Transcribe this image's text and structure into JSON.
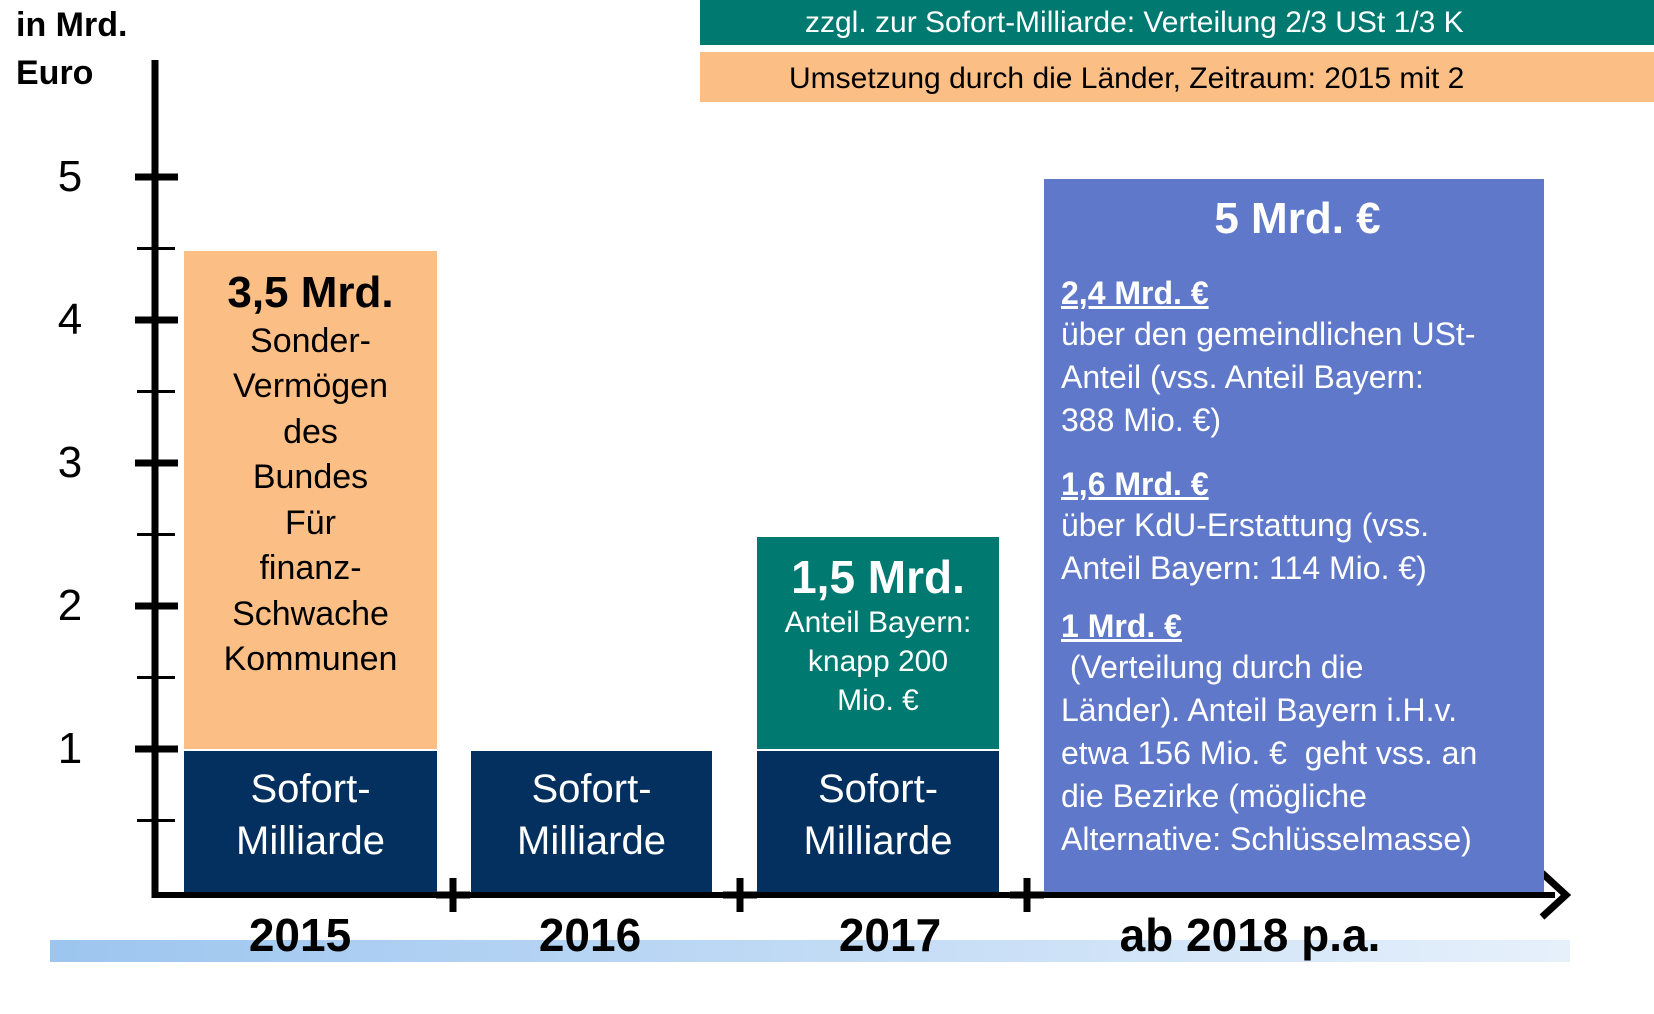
{
  "chart_data": {
    "type": "stacked_bar",
    "ylabel": [
      "in Mrd.",
      "Euro"
    ],
    "banners": [
      {
        "text": "zzgl. zur Sofort-Milliarde: Verteilung 2/3 USt 1/3 K",
        "color": "#007a70",
        "text_color": "#ffffff"
      },
      {
        "text": "Umsetzung durch die Länder, Zeitraum: 2015 mit 2",
        "color": "#fbbf85",
        "text_color": "#000000"
      }
    ],
    "categories": [
      "2015",
      "2016",
      "2017",
      "ab 2018 p.a."
    ],
    "ylim": [
      0,
      5.8
    ],
    "yticks": [
      1,
      2,
      3,
      4,
      5
    ],
    "yminor": [
      0.5,
      1.5,
      2.5,
      3.5,
      4.5
    ],
    "series": [
      {
        "name": "Sofort-Milliarde",
        "color": "#03305f",
        "values": [
          1,
          1,
          1,
          null
        ]
      },
      {
        "colors": [
          "#fbbf85",
          null,
          "#007a70",
          null
        ],
        "values": [
          3.5,
          null,
          1.5,
          null
        ],
        "value_labels": [
          "3,5 Mrd.",
          null,
          "1,5 Mrd.",
          null
        ],
        "notes": [
          [
            "Sonder-",
            "Vermögen",
            "des",
            "Bundes",
            "Für",
            "finanz-",
            "Schwache",
            "Kommunen"
          ],
          null,
          [
            "Anteil Bayern:",
            "knapp 200",
            "Mio. €"
          ],
          null
        ]
      },
      {
        "color": "#5f78c9",
        "values": [
          null,
          null,
          null,
          5
        ],
        "value_labels": [
          null,
          null,
          null,
          "5 Mrd. €"
        ],
        "breakdown": [
          {
            "label": "2,4 Mrd. €",
            "lines": [
              "über den gemeindlichen USt-",
              "Anteil (vss. Anteil Bayern:",
              "388 Mio. €)"
            ]
          },
          {
            "label": "1,6 Mrd. €",
            "lines": [
              "über KdU-Erstattung (vss.",
              "Anteil Bayern: 114 Mio. €)"
            ]
          },
          {
            "label": "1 Mrd. €",
            "lines": [
              " (Verteilung durch die",
              "Länder). Anteil Bayern i.H.v.",
              "etwa 156 Mio. €  geht vss. an",
              "die Bezirke (mögliche",
              "Alternative: Schlüsselmasse)"
            ]
          }
        ]
      }
    ]
  }
}
